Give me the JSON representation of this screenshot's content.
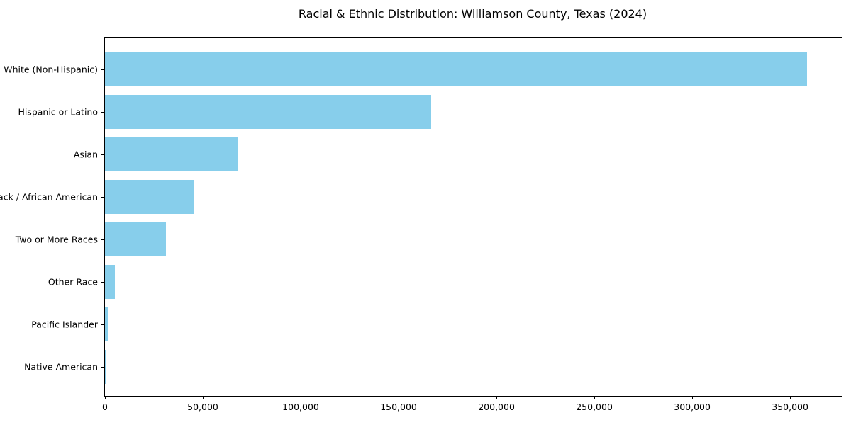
{
  "chart_data": {
    "type": "bar",
    "orientation": "horizontal",
    "title": "Racial & Ethnic Distribution: Williamson County, Texas (2024)",
    "categories": [
      "White (Non-Hispanic)",
      "Hispanic or Latino",
      "Asian",
      "Black / African American",
      "Two or More Races",
      "Other Race",
      "Pacific Islander",
      "Native American"
    ],
    "values": [
      358500,
      166700,
      67700,
      45600,
      31200,
      5000,
      1300,
      300
    ],
    "xlabel": "",
    "ylabel": "",
    "xlim": [
      0,
      376400
    ],
    "x_ticks": [
      0,
      50000,
      100000,
      150000,
      200000,
      250000,
      300000,
      350000
    ],
    "x_tick_labels": [
      "0",
      "50,000",
      "100,000",
      "150,000",
      "200,000",
      "250,000",
      "300,000",
      "350,000"
    ],
    "bar_color": "#87CEEB",
    "frame_color": "#000000",
    "grid": false,
    "legend": "none",
    "sort_order": "descending"
  }
}
